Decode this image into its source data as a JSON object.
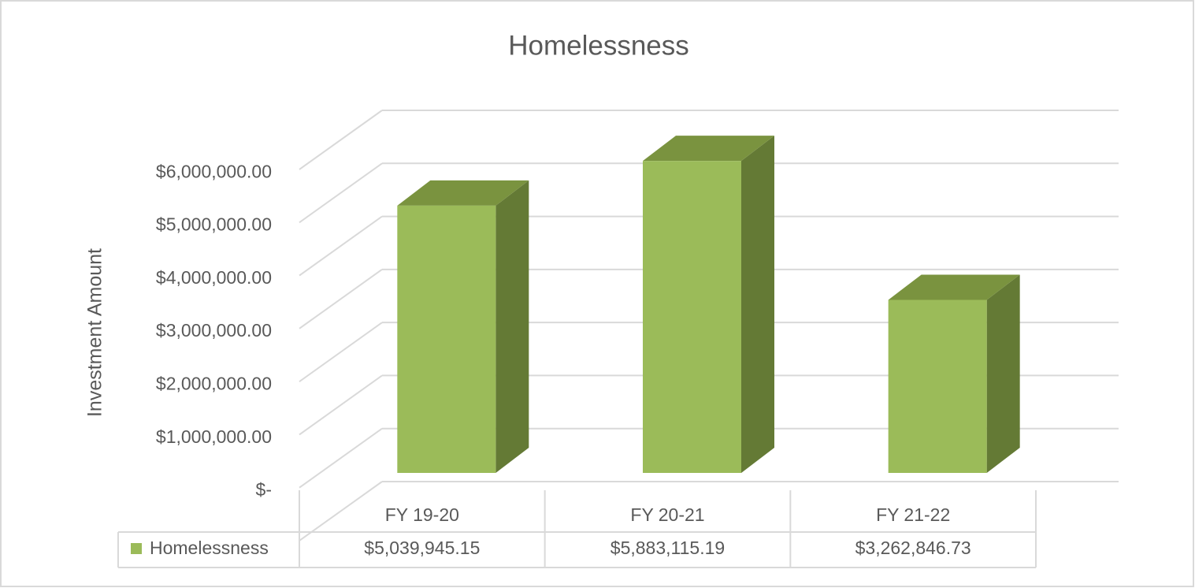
{
  "chart_data": {
    "type": "bar3d",
    "title": "Homelessness",
    "y_label": "Investment Amount",
    "categories": [
      "FY 19-20",
      "FY 20-21",
      "FY 21-22"
    ],
    "series": [
      {
        "name": "Homelessness",
        "color": "#9bbb59",
        "values": [
          5039945.15,
          5883115.19,
          3262846.73
        ],
        "value_labels": [
          "$5,039,945.15",
          "$5,883,115.19",
          "$3,262,846.73"
        ]
      }
    ],
    "ylim": [
      0,
      7000000
    ],
    "yticks": [
      {
        "value": 0,
        "label": "$-"
      },
      {
        "value": 1000000,
        "label": "$1,000,000.00"
      },
      {
        "value": 2000000,
        "label": "$2,000,000.00"
      },
      {
        "value": 3000000,
        "label": "$3,000,000.00"
      },
      {
        "value": 4000000,
        "label": "$4,000,000.00"
      },
      {
        "value": 5000000,
        "label": "$5,000,000.00"
      },
      {
        "value": 6000000,
        "label": "$6,000,000.00"
      }
    ],
    "grid": true
  }
}
